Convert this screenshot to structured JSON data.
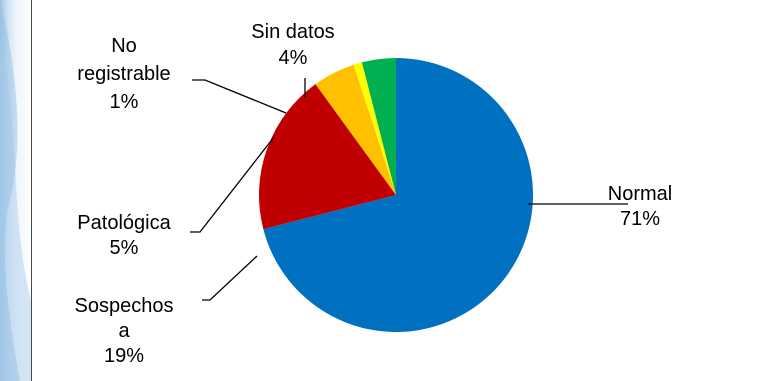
{
  "chart_data": {
    "type": "pie",
    "categories": [
      "Normal",
      "Sospechosa",
      "Patológica",
      "No registrable",
      "Sin datos"
    ],
    "values": [
      71,
      19,
      5,
      1,
      4
    ],
    "labels": [
      {
        "name_lines": [
          "Normal"
        ],
        "pct": "71%"
      },
      {
        "name_lines": [
          "Sospechos",
          "a"
        ],
        "pct": "19%"
      },
      {
        "name_lines": [
          "Patológica"
        ],
        "pct": "5%"
      },
      {
        "name_lines": [
          "No",
          "registrable"
        ],
        "pct": "1%"
      },
      {
        "name_lines": [
          "Sin datos"
        ],
        "pct": "4%"
      }
    ],
    "colors": [
      "#0070c0",
      "#c00000",
      "#ffc000",
      "#ffff00",
      "#00b050"
    ],
    "legend": "none",
    "title": ""
  }
}
